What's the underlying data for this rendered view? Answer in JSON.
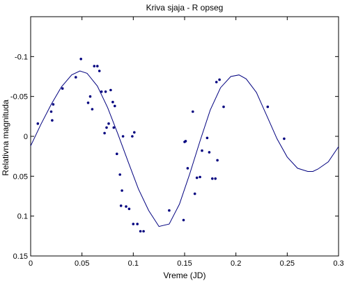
{
  "chart_data": {
    "type": "scatter",
    "title": "Kriva sjaja - R opseg",
    "xlabel": "Vreme (JD)",
    "ylabel": "Relativna magnituda",
    "xlim": [
      0,
      0.3
    ],
    "ylim": [
      0.15,
      -0.15
    ],
    "y_reversed": true,
    "grid": false,
    "x_ticks": [
      "0",
      "0.05",
      "0.1",
      "0.15",
      "0.2",
      "0.25",
      "0.3"
    ],
    "y_ticks": [
      "-0.1",
      "-0.05",
      "0",
      "0.05",
      "0.1",
      "0.15"
    ],
    "series": [
      {
        "kind": "points",
        "color": "#00007f",
        "x": [
          0.007,
          0.02,
          0.021,
          0.022,
          0.031,
          0.044,
          0.049,
          0.056,
          0.058,
          0.06,
          0.062,
          0.065,
          0.067,
          0.069,
          0.072,
          0.073,
          0.074,
          0.076,
          0.078,
          0.08,
          0.081,
          0.082,
          0.084,
          0.087,
          0.088,
          0.089,
          0.09,
          0.093,
          0.096,
          0.099,
          0.1,
          0.101,
          0.104,
          0.107,
          0.11,
          0.135,
          0.149,
          0.15,
          0.151,
          0.153,
          0.158,
          0.16,
          0.162,
          0.165,
          0.167,
          0.172,
          0.174,
          0.177,
          0.18,
          0.181,
          0.182,
          0.184,
          0.188,
          0.231,
          0.247
        ],
        "y": [
          -0.016,
          -0.031,
          -0.02,
          -0.04,
          -0.06,
          -0.074,
          -0.097,
          -0.042,
          -0.05,
          -0.034,
          -0.088,
          -0.088,
          -0.082,
          -0.056,
          -0.004,
          -0.056,
          -0.011,
          -0.016,
          -0.058,
          -0.043,
          -0.011,
          -0.038,
          0.022,
          0.048,
          0.087,
          0.068,
          0.0,
          0.088,
          0.091,
          0.0,
          0.11,
          -0.005,
          0.11,
          0.119,
          0.119,
          0.093,
          0.105,
          0.007,
          0.006,
          0.04,
          -0.031,
          0.072,
          0.052,
          0.051,
          0.018,
          0.002,
          0.02,
          0.053,
          0.053,
          -0.068,
          0.03,
          -0.071,
          -0.037,
          -0.037,
          0.003
        ]
      },
      {
        "kind": "line",
        "color": "#00007f",
        "x": [
          0.0,
          0.01,
          0.02,
          0.03,
          0.04,
          0.048,
          0.055,
          0.065,
          0.075,
          0.085,
          0.095,
          0.105,
          0.115,
          0.125,
          0.135,
          0.145,
          0.155,
          0.165,
          0.175,
          0.185,
          0.195,
          0.203,
          0.21,
          0.22,
          0.23,
          0.24,
          0.25,
          0.26,
          0.27,
          0.275,
          0.28,
          0.29,
          0.3
        ],
        "y": [
          0.012,
          -0.015,
          -0.04,
          -0.062,
          -0.077,
          -0.082,
          -0.079,
          -0.063,
          -0.036,
          -0.003,
          0.032,
          0.066,
          0.093,
          0.113,
          0.11,
          0.085,
          0.047,
          0.006,
          -0.033,
          -0.061,
          -0.075,
          -0.077,
          -0.072,
          -0.055,
          -0.026,
          0.003,
          0.026,
          0.04,
          0.044,
          0.044,
          0.041,
          0.032,
          0.013
        ]
      }
    ]
  }
}
